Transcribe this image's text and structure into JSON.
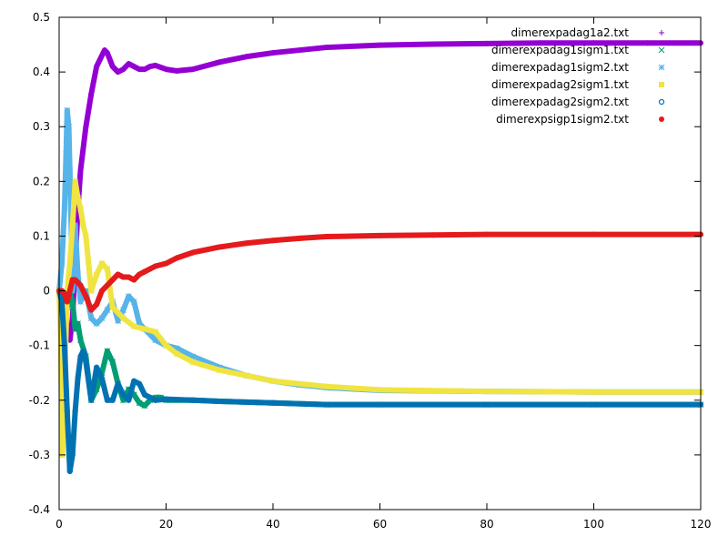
{
  "chart_data": {
    "type": "line",
    "title": "",
    "xlabel": "",
    "ylabel": "",
    "xlim": [
      0,
      120
    ],
    "ylim": [
      -0.4,
      0.5
    ],
    "x_ticks": [
      0,
      20,
      40,
      60,
      80,
      100,
      120
    ],
    "x_tick_labels": [
      "0",
      "20",
      "40",
      "60",
      "80",
      "100",
      "120"
    ],
    "y_ticks": [
      -0.4,
      -0.3,
      -0.2,
      -0.1,
      0,
      0.1,
      0.2,
      0.3,
      0.4,
      0.5
    ],
    "y_tick_labels": [
      "-0.4",
      "-0.3",
      "-0.2",
      "-0.1",
      "0",
      "0.1",
      "0.2",
      "0.3",
      "0.4",
      "0.5"
    ],
    "grid": false,
    "legend_position": "top-right",
    "series": [
      {
        "name": "dimerexpadag1a2.txt",
        "color": "#9400d3",
        "marker": "plus",
        "x": [
          0,
          1,
          1.5,
          2,
          2.5,
          3,
          3.5,
          4,
          5,
          6,
          7,
          8,
          8.5,
          9,
          10,
          11,
          12,
          13,
          14,
          15,
          16,
          17,
          18,
          20,
          22,
          25,
          30,
          35,
          40,
          45,
          50,
          60,
          70,
          80,
          90,
          100,
          110,
          120
        ],
        "y": [
          0.0,
          -0.03,
          -0.07,
          -0.09,
          -0.05,
          0.05,
          0.15,
          0.22,
          0.3,
          0.36,
          0.41,
          0.43,
          0.44,
          0.435,
          0.41,
          0.4,
          0.405,
          0.415,
          0.41,
          0.405,
          0.405,
          0.41,
          0.412,
          0.405,
          0.402,
          0.405,
          0.418,
          0.428,
          0.435,
          0.44,
          0.445,
          0.449,
          0.451,
          0.452,
          0.453,
          0.453,
          0.453,
          0.453
        ]
      },
      {
        "name": "dimerexpadag1sigm1.txt",
        "color": "#009e73",
        "marker": "cross",
        "x": [
          0,
          0.5,
          1,
          1.5,
          2,
          2.5,
          3,
          3.5,
          4,
          5,
          6,
          7,
          8,
          9,
          10,
          11,
          12,
          13,
          14,
          15,
          16,
          17,
          18,
          19,
          20,
          25,
          30,
          40,
          50,
          60,
          80,
          100,
          120
        ],
        "y": [
          0.0,
          -0.02,
          -0.06,
          -0.03,
          0.0,
          -0.02,
          -0.07,
          -0.06,
          -0.09,
          -0.12,
          -0.2,
          -0.18,
          -0.15,
          -0.11,
          -0.13,
          -0.17,
          -0.2,
          -0.18,
          -0.19,
          -0.205,
          -0.21,
          -0.2,
          -0.195,
          -0.195,
          -0.2,
          -0.2,
          -0.202,
          -0.205,
          -0.208,
          -0.208,
          -0.208,
          -0.208,
          -0.208
        ]
      },
      {
        "name": "dimerexpadag1sigm2.txt",
        "color": "#56b4e9",
        "marker": "star",
        "x": [
          0,
          0.5,
          1,
          1.3,
          1.5,
          1.8,
          2,
          2.3,
          2.5,
          2.8,
          3,
          3.5,
          4,
          5,
          6,
          7,
          8,
          9,
          10,
          11,
          12,
          13,
          14,
          15,
          16,
          18,
          20,
          22,
          25,
          30,
          35,
          40,
          45,
          50,
          60,
          80,
          100,
          120
        ],
        "y": [
          0.0,
          0.05,
          0.15,
          0.25,
          0.33,
          0.3,
          0.22,
          0.1,
          0.0,
          0.07,
          0.12,
          0.03,
          -0.02,
          0.0,
          -0.05,
          -0.06,
          -0.05,
          -0.035,
          -0.02,
          -0.055,
          -0.035,
          -0.01,
          -0.02,
          -0.06,
          -0.07,
          -0.09,
          -0.1,
          -0.105,
          -0.12,
          -0.14,
          -0.155,
          -0.165,
          -0.172,
          -0.177,
          -0.182,
          -0.184,
          -0.185,
          -0.185
        ]
      },
      {
        "name": "dimerexpadag2sigm1.txt",
        "color": "#f0e442",
        "marker": "square",
        "x": [
          0,
          0.3,
          0.6,
          1,
          1.5,
          2,
          2.5,
          3,
          3.5,
          4,
          4.5,
          5,
          6,
          7,
          8,
          9,
          10,
          12,
          14,
          16,
          18,
          20,
          22,
          25,
          30,
          35,
          40,
          50,
          60,
          80,
          100,
          120
        ],
        "y": [
          0.0,
          -0.1,
          -0.3,
          -0.18,
          0.0,
          0.05,
          0.12,
          0.2,
          0.17,
          0.15,
          0.12,
          0.1,
          0.0,
          0.03,
          0.05,
          0.04,
          -0.03,
          -0.05,
          -0.065,
          -0.07,
          -0.075,
          -0.1,
          -0.115,
          -0.13,
          -0.145,
          -0.155,
          -0.165,
          -0.175,
          -0.181,
          -0.184,
          -0.185,
          -0.185
        ]
      },
      {
        "name": "dimerexpadag2sigm2.txt",
        "color": "#0072b2",
        "marker": "circle",
        "x": [
          0,
          0.5,
          1,
          1.5,
          2,
          2.5,
          3,
          3.5,
          4,
          4.5,
          5,
          6,
          7,
          8,
          9,
          10,
          11,
          12,
          13,
          14,
          15,
          16,
          17,
          18,
          20,
          25,
          30,
          40,
          50,
          60,
          80,
          100,
          120
        ],
        "y": [
          0.0,
          -0.02,
          -0.1,
          -0.22,
          -0.33,
          -0.3,
          -0.22,
          -0.16,
          -0.12,
          -0.11,
          -0.13,
          -0.2,
          -0.14,
          -0.16,
          -0.2,
          -0.2,
          -0.17,
          -0.19,
          -0.2,
          -0.165,
          -0.17,
          -0.19,
          -0.195,
          -0.2,
          -0.198,
          -0.2,
          -0.202,
          -0.205,
          -0.208,
          -0.208,
          -0.208,
          -0.208,
          -0.208
        ]
      },
      {
        "name": "dimerexpsigp1sigm2.txt",
        "color": "#e41a1c",
        "marker": "filled-circle",
        "x": [
          0,
          0.5,
          1,
          1.5,
          2,
          2.5,
          3,
          3.5,
          4,
          5,
          6,
          7,
          8,
          9,
          10,
          11,
          12,
          13,
          14,
          15,
          16,
          17,
          18,
          20,
          22,
          25,
          30,
          35,
          40,
          45,
          50,
          60,
          70,
          80,
          100,
          120
        ],
        "y": [
          0.0,
          0.0,
          -0.005,
          -0.02,
          0.0,
          0.02,
          0.02,
          0.015,
          0.01,
          -0.01,
          -0.035,
          -0.025,
          0.0,
          0.01,
          0.02,
          0.03,
          0.025,
          0.025,
          0.02,
          0.03,
          0.035,
          0.04,
          0.045,
          0.05,
          0.06,
          0.07,
          0.08,
          0.087,
          0.092,
          0.096,
          0.099,
          0.101,
          0.102,
          0.103,
          0.103,
          0.103
        ]
      }
    ]
  }
}
